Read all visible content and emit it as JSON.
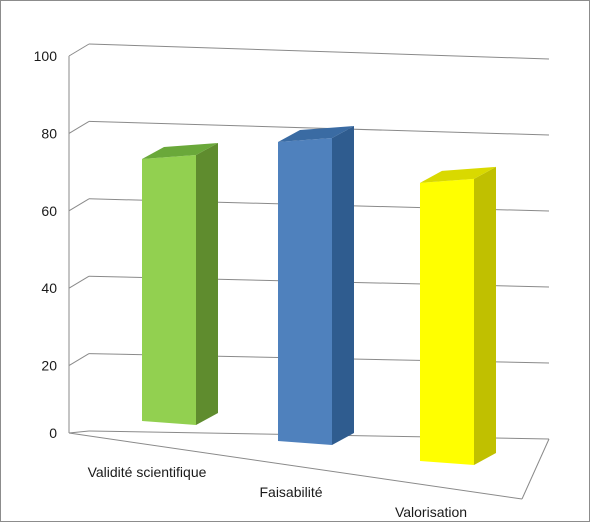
{
  "chart_data": {
    "type": "bar",
    "style": "3d-column",
    "categories": [
      "Validité scientifique",
      "Faisabilité",
      "Valorisation"
    ],
    "values": [
      70,
      80,
      75
    ],
    "colors": [
      "#92d050",
      "#4f81bd",
      "#ffff00"
    ],
    "side_colors": [
      "#5f8c2e",
      "#2f5c8f",
      "#c0c000"
    ],
    "top_colors": [
      "#6aa83a",
      "#3a6ba3",
      "#d9d900"
    ],
    "ylim": [
      0,
      100
    ],
    "yticks": [
      "0",
      "20",
      "40",
      "60",
      "80",
      "100"
    ],
    "grid": true,
    "legend": "none",
    "title": "",
    "xlabel": "",
    "ylabel": ""
  }
}
